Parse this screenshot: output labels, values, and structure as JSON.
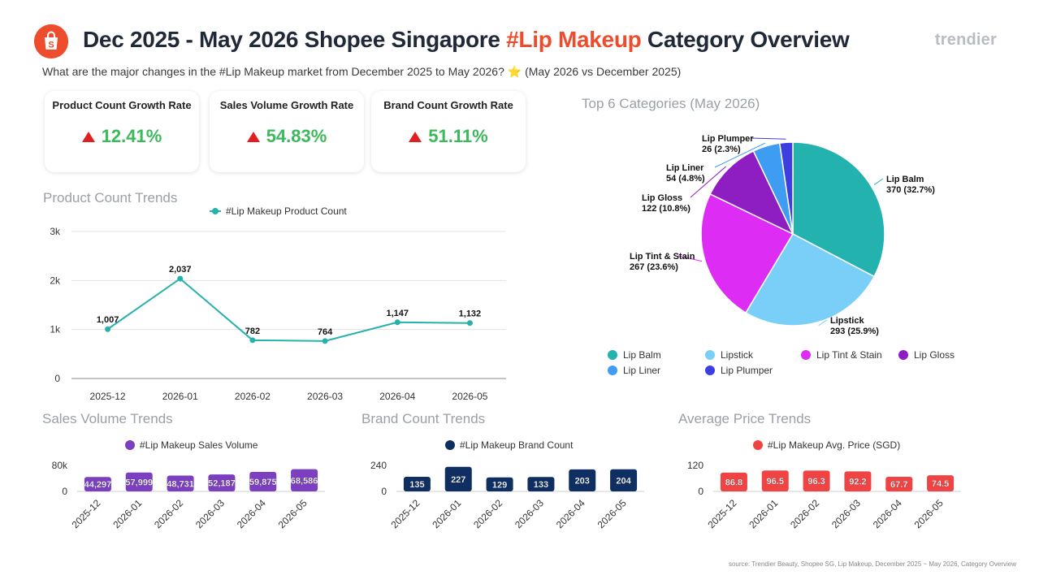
{
  "header": {
    "title_prefix": "Dec 2025 - May 2026 Shopee Singapore ",
    "title_highlight": "#Lip Makeup",
    "title_suffix": " Category Overview",
    "brand": "trendier",
    "subtitle": "What are the major changes in the #Lip Makeup market from December 2025 to May 2026? ⭐ (May 2026 vs December 2025)"
  },
  "kpis": [
    {
      "label": "Product Count Growth Rate",
      "value": "12.41%"
    },
    {
      "label": "Sales Volume Growth Rate",
      "value": "54.83%"
    },
    {
      "label": "Brand Count Growth Rate",
      "value": "51.11%"
    }
  ],
  "sections": {
    "product_trends": "Product Count Trends",
    "pie": "Top 6 Categories (May 2026)",
    "sales": "Sales Volume Trends",
    "brand": "Brand Count Trends",
    "price": "Average Price Trends"
  },
  "colors": {
    "accent": "#ee4d2d",
    "growth": "#3cb95a",
    "up_arrow": "#e02020",
    "line": "#26b1aa",
    "sales_bar": "#7b3fbf",
    "brand_bar": "#0f2f63",
    "price_bar": "#f04343"
  },
  "chart_data": [
    {
      "id": "product",
      "type": "line",
      "legend": "#Lip Makeup Product Count",
      "categories": [
        "2025-12",
        "2026-01",
        "2026-02",
        "2026-03",
        "2026-04",
        "2026-05"
      ],
      "values": [
        1007,
        2037,
        782,
        764,
        1147,
        1132
      ],
      "labels": [
        "1,007",
        "2,037",
        "782",
        "764",
        "1,147",
        "1,132"
      ],
      "yticks": [
        "0",
        "1k",
        "2k",
        "3k"
      ],
      "ylim": [
        0,
        3000
      ]
    },
    {
      "id": "pie",
      "type": "pie",
      "categories": [
        "Lip Balm",
        "Lipstick",
        "Lip Tint & Stain",
        "Lip Gloss",
        "Lip Liner",
        "Lip Plumper"
      ],
      "values": [
        370,
        293,
        267,
        122,
        54,
        26
      ],
      "labels": [
        "370 (32.7%)",
        "293 (25.9%)",
        "267 (23.6%)",
        "122 (10.8%)",
        "54 (4.8%)",
        "26 (2.3%)"
      ],
      "colors": [
        "#24b2ae",
        "#79cff8",
        "#dd2cf3",
        "#8e1ec1",
        "#3e9cf2",
        "#3d3de0"
      ]
    },
    {
      "id": "sales",
      "type": "bar",
      "legend": "#Lip Makeup Sales Volume",
      "categories": [
        "2025-12",
        "2026-01",
        "2026-02",
        "2026-03",
        "2026-04",
        "2026-05"
      ],
      "values": [
        44297,
        57999,
        48731,
        52187,
        59875,
        68586
      ],
      "labels": [
        "44,297",
        "57,999",
        "48,731",
        "52,187",
        "59,875",
        "68,586"
      ],
      "yticks": [
        "0",
        "80k"
      ],
      "ylim": [
        0,
        80000
      ]
    },
    {
      "id": "brand",
      "type": "bar",
      "legend": "#Lip Makeup Brand Count",
      "categories": [
        "2025-12",
        "2026-01",
        "2026-02",
        "2026-03",
        "2026-04",
        "2026-05"
      ],
      "values": [
        135,
        227,
        129,
        133,
        203,
        204
      ],
      "labels": [
        "135",
        "227",
        "129",
        "133",
        "203",
        "204"
      ],
      "yticks": [
        "0",
        "240"
      ],
      "ylim": [
        0,
        240
      ]
    },
    {
      "id": "price",
      "type": "bar",
      "legend": "#Lip Makeup Avg. Price (SGD)",
      "categories": [
        "2025-12",
        "2026-01",
        "2026-02",
        "2026-03",
        "2026-04",
        "2026-05"
      ],
      "values": [
        86.8,
        96.5,
        96.3,
        92.2,
        67.7,
        74.5
      ],
      "labels": [
        "86.8",
        "96.5",
        "96.3",
        "92.2",
        "67.7",
        "74.5"
      ],
      "yticks": [
        "0",
        "120"
      ],
      "ylim": [
        0,
        120
      ]
    }
  ],
  "source": "source: Trendier Beauty, Shopee SG, Lip Makeup, December 2025 ~ May 2026, Category Overview"
}
